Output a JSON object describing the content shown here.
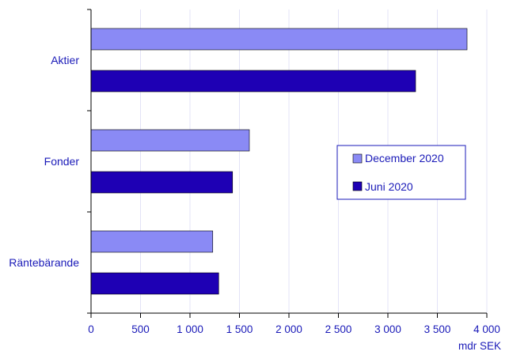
{
  "chart_data": {
    "type": "bar",
    "orientation": "horizontal",
    "categories": [
      "Aktier",
      "Fonder",
      "Räntebärande"
    ],
    "series": [
      {
        "name": "December 2020",
        "color": "#8a8af5",
        "values": [
          3800,
          1600,
          1230
        ]
      },
      {
        "name": "Juni 2020",
        "color": "#1e00b4",
        "values": [
          3280,
          1430,
          1290
        ]
      }
    ],
    "x_ticks": [
      0,
      500,
      1000,
      1500,
      2000,
      2500,
      3000,
      3500,
      4000
    ],
    "x_tick_labels": [
      "0",
      "500",
      "1 000",
      "1 500",
      "2 000",
      "2 500",
      "3 000",
      "3 500",
      "4 000"
    ],
    "xlim": [
      0,
      4000
    ],
    "xlabel": "mdr SEK",
    "ylabel": "",
    "title": "",
    "grid": "vertical",
    "legend_position": "right-center",
    "text_color": "#1a1ab8"
  }
}
